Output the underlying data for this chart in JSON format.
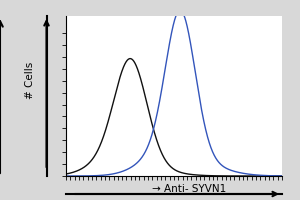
{
  "black_peak_x": 0.3,
  "black_peak_y": 0.72,
  "black_sigma": 0.075,
  "blue_peak_x": 0.53,
  "blue_peak_y": 1.0,
  "blue_sigma": 0.068,
  "black_color": "#111111",
  "blue_color": "#3355bb",
  "fig_bg_color": "#d8d8d8",
  "plot_bg_color": "#ffffff",
  "xlabel": "Anti- SYVN1",
  "ylabel": "# Cells",
  "xlim": [
    0.0,
    1.0
  ],
  "ylim": [
    0.0,
    1.12
  ],
  "xtick_count": 50,
  "ytick_count": 12,
  "linewidth": 1.0,
  "xlabel_fontsize": 7.5,
  "ylabel_fontsize": 7.5
}
